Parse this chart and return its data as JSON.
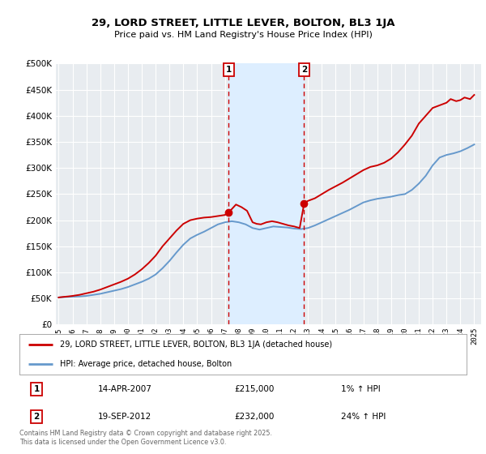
{
  "title": "29, LORD STREET, LITTLE LEVER, BOLTON, BL3 1JA",
  "subtitle": "Price paid vs. HM Land Registry's House Price Index (HPI)",
  "legend_line1": "29, LORD STREET, LITTLE LEVER, BOLTON, BL3 1JA (detached house)",
  "legend_line2": "HPI: Average price, detached house, Bolton",
  "footnote": "Contains HM Land Registry data © Crown copyright and database right 2025.\nThis data is licensed under the Open Government Licence v3.0.",
  "marker1_date": "14-APR-2007",
  "marker1_price": "£215,000",
  "marker1_hpi": "1% ↑ HPI",
  "marker1_year": 2007.28,
  "marker1_value": 215000,
  "marker2_date": "19-SEP-2012",
  "marker2_price": "£232,000",
  "marker2_hpi": "24% ↑ HPI",
  "marker2_year": 2012.72,
  "marker2_value": 232000,
  "shade_start": 2007.28,
  "shade_end": 2012.72,
  "ylim": [
    0,
    500000
  ],
  "xlim_start": 1994.8,
  "xlim_end": 2025.5,
  "price_line_color": "#cc0000",
  "hpi_line_color": "#6699cc",
  "shade_color": "#ddeeff",
  "background_color": "#e8ecf0",
  "grid_color": "#ffffff",
  "hpi_years": [
    1995.0,
    1995.3,
    1995.6,
    1996.0,
    1996.5,
    1997.0,
    1997.5,
    1998.0,
    1998.5,
    1999.0,
    1999.5,
    2000.0,
    2000.5,
    2001.0,
    2001.5,
    2002.0,
    2002.5,
    2003.0,
    2003.5,
    2004.0,
    2004.5,
    2005.0,
    2005.5,
    2006.0,
    2006.5,
    2007.0,
    2007.5,
    2008.0,
    2008.5,
    2009.0,
    2009.5,
    2010.0,
    2010.5,
    2011.0,
    2011.5,
    2012.0,
    2012.5,
    2013.0,
    2013.5,
    2014.0,
    2014.5,
    2015.0,
    2015.5,
    2016.0,
    2016.5,
    2017.0,
    2017.5,
    2018.0,
    2018.5,
    2019.0,
    2019.5,
    2020.0,
    2020.5,
    2021.0,
    2021.5,
    2022.0,
    2022.5,
    2023.0,
    2023.5,
    2024.0,
    2024.5,
    2025.0
  ],
  "hpi_values": [
    52000,
    52500,
    53000,
    53500,
    54000,
    55000,
    57000,
    59000,
    62000,
    65000,
    68000,
    72000,
    77000,
    82000,
    88000,
    96000,
    108000,
    122000,
    138000,
    153000,
    165000,
    172000,
    178000,
    185000,
    192000,
    196000,
    198000,
    196000,
    192000,
    185000,
    182000,
    185000,
    188000,
    187000,
    186000,
    184000,
    183000,
    185000,
    190000,
    196000,
    202000,
    208000,
    214000,
    220000,
    227000,
    234000,
    238000,
    241000,
    243000,
    245000,
    248000,
    250000,
    258000,
    270000,
    285000,
    305000,
    320000,
    325000,
    328000,
    332000,
    338000,
    345000
  ],
  "price_years": [
    1995.0,
    1995.3,
    1995.7,
    1996.0,
    1996.5,
    1997.0,
    1997.5,
    1998.0,
    1998.5,
    1999.0,
    1999.5,
    2000.0,
    2000.5,
    2001.0,
    2001.5,
    2002.0,
    2002.5,
    2003.0,
    2003.5,
    2004.0,
    2004.5,
    2005.0,
    2005.5,
    2006.0,
    2006.5,
    2007.0,
    2007.28,
    2007.8,
    2008.2,
    2008.6,
    2009.0,
    2009.3,
    2009.6,
    2010.0,
    2010.4,
    2010.8,
    2011.2,
    2011.6,
    2012.0,
    2012.4,
    2012.72,
    2013.0,
    2013.5,
    2014.0,
    2014.5,
    2015.0,
    2015.5,
    2016.0,
    2016.5,
    2017.0,
    2017.5,
    2018.0,
    2018.5,
    2019.0,
    2019.5,
    2020.0,
    2020.5,
    2021.0,
    2021.5,
    2022.0,
    2022.5,
    2023.0,
    2023.3,
    2023.7,
    2024.0,
    2024.3,
    2024.7,
    2025.0
  ],
  "price_values": [
    52000,
    53000,
    54000,
    55000,
    57000,
    60000,
    63000,
    67000,
    72000,
    77000,
    82000,
    88000,
    96000,
    106000,
    118000,
    132000,
    150000,
    165000,
    180000,
    193000,
    200000,
    203000,
    205000,
    206000,
    208000,
    210000,
    215000,
    230000,
    225000,
    218000,
    196000,
    193000,
    192000,
    196000,
    198000,
    196000,
    193000,
    190000,
    188000,
    185000,
    232000,
    237000,
    242000,
    250000,
    258000,
    265000,
    272000,
    280000,
    288000,
    296000,
    302000,
    305000,
    310000,
    318000,
    330000,
    345000,
    362000,
    385000,
    400000,
    415000,
    420000,
    425000,
    432000,
    428000,
    430000,
    435000,
    432000,
    440000
  ]
}
